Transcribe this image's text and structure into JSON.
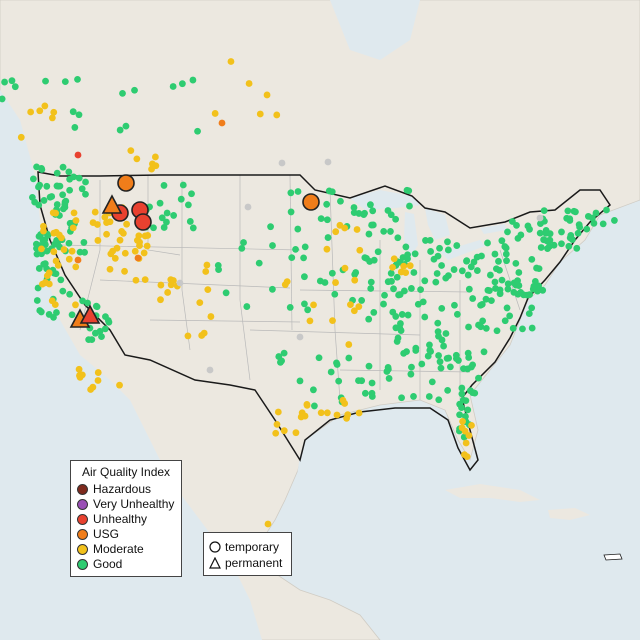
{
  "legend": {
    "title": "Air Quality Index",
    "items": [
      {
        "label": "Hazardous",
        "color": "#7e2a1d"
      },
      {
        "label": "Very Unhealthy",
        "color": "#9a4fb5"
      },
      {
        "label": "Unhealthy",
        "color": "#e8412f"
      },
      {
        "label": "USG",
        "color": "#f07d1a"
      },
      {
        "label": "Moderate",
        "color": "#f2c11b"
      },
      {
        "label": "Good",
        "color": "#2ecc71"
      }
    ]
  },
  "site_types": {
    "temporary": "temporary",
    "permanent": "permanent"
  },
  "colors": {
    "water": "#dfe9ee",
    "land": "#ece8e0",
    "border": "#1a1a1a",
    "state_line": "#b9b9b9",
    "no_data": "#c8c8c8"
  },
  "highlight_sites": [
    {
      "type": "temporary",
      "category": "USG"
    },
    {
      "type": "temporary",
      "category": "USG"
    },
    {
      "type": "temporary",
      "category": "Unhealthy"
    },
    {
      "type": "temporary",
      "category": "Unhealthy"
    },
    {
      "type": "temporary",
      "category": "Unhealthy"
    },
    {
      "type": "permanent",
      "category": "USG"
    },
    {
      "type": "permanent",
      "category": "Unhealthy"
    },
    {
      "type": "permanent",
      "category": "USG"
    }
  ]
}
